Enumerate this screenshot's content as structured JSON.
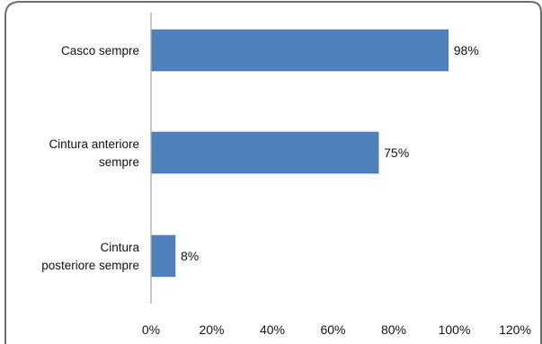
{
  "chart_data": {
    "type": "bar",
    "orientation": "horizontal",
    "categories": [
      [
        "Casco sempre"
      ],
      [
        "Cintura anteriore",
        "sempre"
      ],
      [
        "Cintura",
        "posteriore sempre"
      ]
    ],
    "values": [
      98,
      75,
      8
    ],
    "data_labels": [
      "98%",
      "75%",
      "8%"
    ],
    "xlim": [
      0,
      120
    ],
    "x_ticks": [
      0,
      20,
      40,
      60,
      80,
      100,
      120
    ],
    "x_tick_labels": [
      "0%",
      "20%",
      "40%",
      "60%",
      "80%",
      "100%",
      "120%"
    ],
    "title": "",
    "xlabel": "",
    "ylabel": "",
    "grid": false,
    "legend": "none",
    "bar_color": "#4f81bd",
    "bar_border_color": "#3a6ea5",
    "frame_border_color": "#6d6d6d"
  }
}
